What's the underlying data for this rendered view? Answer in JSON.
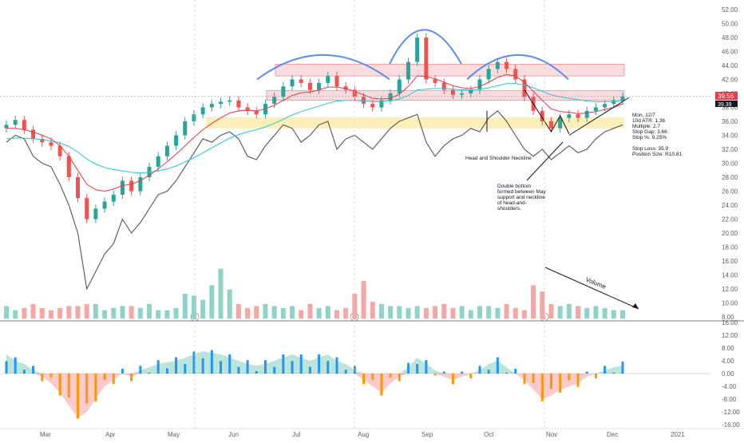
{
  "chart_data": [
    {
      "type": "candlestick",
      "title": "",
      "y_ticks": [
        "52.00",
        "50.00",
        "48.00",
        "46.00",
        "44.00",
        "42.00",
        "40.00",
        "38.00",
        "36.00",
        "34.00",
        "32.00",
        "30.00",
        "28.00",
        "26.00",
        "24.00",
        "22.00",
        "20.00",
        "18.00",
        "16.00",
        "14.00",
        "12.00",
        "10.00",
        "8.00"
      ],
      "x_labels": [
        "Mar",
        "Apr",
        "May",
        "Jun",
        "Jul",
        "Aug",
        "Sep",
        "Oct",
        "Nov",
        "Dec",
        "2021"
      ],
      "ylim": [
        8,
        52
      ],
      "last_price": "39.56",
      "prev_close_label": "39.39",
      "x": [
        "Feb 17",
        "Feb 20",
        "Feb 25",
        "Feb 28",
        "Mar 4",
        "Mar 9",
        "Mar 12",
        "Mar 17",
        "Mar 20",
        "Mar 25",
        "Mar 30",
        "Apr 2",
        "Apr 7",
        "Apr 14",
        "Apr 17",
        "Apr 22",
        "Apr 27",
        "May 1",
        "May 6",
        "May 11",
        "May 14",
        "May 19",
        "May 22",
        "May 27",
        "Jun 1",
        "Jun 4",
        "Jun 9",
        "Jun 12",
        "Jun 17",
        "Jun 22",
        "Jun 26",
        "Jul 1",
        "Jul 6",
        "Jul 9",
        "Jul 14",
        "Jul 17",
        "Jul 22",
        "Jul 27",
        "Jul 30",
        "Aug 4",
        "Aug 7",
        "Aug 12",
        "Aug 17",
        "Aug 20",
        "Aug 25",
        "Aug 28",
        "Sep 2",
        "Sep 7",
        "Sep 10",
        "Sep 15",
        "Sep 18",
        "Sep 23",
        "Sep 28",
        "Oct 1",
        "Oct 6",
        "Oct 9",
        "Oct 14",
        "Oct 19",
        "Oct 22",
        "Oct 27",
        "Oct 30",
        "Nov 4",
        "Nov 9",
        "Nov 12",
        "Nov 17",
        "Nov 20",
        "Nov 25",
        "Nov 30",
        "Dec 3",
        "Dec 7"
      ],
      "series": [
        {
          "name": "Price",
          "values": [
            35.5,
            36.2,
            34.8,
            33.5,
            33.0,
            32.5,
            31.0,
            28.0,
            25.0,
            22.0,
            23.5,
            24.5,
            25.5,
            27.5,
            26.0,
            28.0,
            29.5,
            31.0,
            32.5,
            34.0,
            36.0,
            37.0,
            38.0,
            38.5,
            38.8,
            39.0,
            38.0,
            37.5,
            37.0,
            38.5,
            39.5,
            41.0,
            42.0,
            41.5,
            40.5,
            41.5,
            42.5,
            41.0,
            40.5,
            39.5,
            38.5,
            38.0,
            39.0,
            40.0,
            42.0,
            44.5,
            48.0,
            42.0,
            41.5,
            40.5,
            39.8,
            40.0,
            40.5,
            42.0,
            43.5,
            44.5,
            43.5,
            42.0,
            39.5,
            37.5,
            36.0,
            35.0,
            36.5,
            37.0,
            36.5,
            37.5,
            38.0,
            38.5,
            39.0,
            39.56
          ]
        },
        {
          "name": "EMA fast",
          "values": [
            35.0,
            35.0,
            34.8,
            34.5,
            34.0,
            33.5,
            32.5,
            31.0,
            29.0,
            27.0,
            26.2,
            26.0,
            26.3,
            26.8,
            27.0,
            27.5,
            28.3,
            29.2,
            30.2,
            31.3,
            32.5,
            33.7,
            34.8,
            35.7,
            36.5,
            37.2,
            37.5,
            37.6,
            37.5,
            37.8,
            38.3,
            39.0,
            39.7,
            40.1,
            40.2,
            40.5,
            40.9,
            40.9,
            40.7,
            40.3,
            39.8,
            39.3,
            39.2,
            39.3,
            39.9,
            41.0,
            42.5,
            42.4,
            42.1,
            41.6,
            41.1,
            40.8,
            40.7,
            41.0,
            41.6,
            42.3,
            42.7,
            42.5,
            41.6,
            40.3,
            39.0,
            37.8,
            37.4,
            37.3,
            37.1,
            37.2,
            37.4,
            37.7,
            38.0,
            38.5
          ]
        },
        {
          "name": "EMA slow",
          "values": [
            33.5,
            33.6,
            33.6,
            33.5,
            33.4,
            33.2,
            32.9,
            32.4,
            31.6,
            30.6,
            29.9,
            29.4,
            29.1,
            28.9,
            28.7,
            28.6,
            28.7,
            28.9,
            29.2,
            29.6,
            30.2,
            30.8,
            31.5,
            32.2,
            32.9,
            33.6,
            34.1,
            34.5,
            34.8,
            35.2,
            35.7,
            36.3,
            36.9,
            37.4,
            37.8,
            38.2,
            38.6,
            38.9,
            39.0,
            39.0,
            38.9,
            38.8,
            38.8,
            38.9,
            39.2,
            39.7,
            40.5,
            40.6,
            40.7,
            40.7,
            40.6,
            40.5,
            40.5,
            40.6,
            40.8,
            41.1,
            41.4,
            41.4,
            41.2,
            40.8,
            40.3,
            39.8,
            39.5,
            39.3,
            39.1,
            38.9,
            38.8,
            38.8,
            38.8,
            38.9
          ]
        },
        {
          "name": "Relative",
          "values": [
            33.0,
            34.0,
            33.5,
            31.0,
            30.0,
            29.5,
            27.0,
            24.0,
            20.0,
            12.0,
            14.5,
            17.0,
            18.5,
            22.0,
            20.0,
            21.5,
            23.5,
            25.5,
            26.0,
            27.5,
            29.5,
            31.5,
            33.5,
            33.0,
            34.0,
            34.5,
            33.5,
            31.0,
            30.5,
            32.5,
            34.0,
            35.5,
            35.0,
            33.0,
            34.0,
            35.5,
            36.0,
            32.0,
            33.5,
            34.0,
            33.0,
            32.0,
            33.5,
            35.0,
            36.0,
            36.5,
            37.0,
            33.0,
            31.0,
            32.5,
            33.5,
            34.0,
            35.0,
            34.5,
            36.5,
            37.5,
            36.0,
            34.0,
            32.0,
            31.0,
            32.0,
            30.5,
            31.5,
            32.5,
            31.5,
            32.0,
            33.5,
            34.5,
            35.0,
            35.5
          ]
        },
        {
          "name": "Volume",
          "values": [
            3.0,
            2.0,
            2.5,
            3.5,
            2.5,
            2.0,
            2.5,
            3.0,
            3.0,
            3.5,
            3.5,
            2.0,
            2.5,
            3.0,
            3.0,
            2.5,
            3.5,
            2.0,
            2.0,
            2.5,
            6.0,
            5.5,
            4.5,
            8.0,
            12.0,
            7.0,
            3.5,
            2.5,
            3.0,
            3.5,
            3.0,
            2.5,
            3.0,
            2.0,
            3.5,
            2.5,
            3.0,
            2.0,
            2.5,
            6.0,
            9.0,
            4.0,
            3.5,
            3.0,
            3.0,
            2.5,
            3.0,
            2.5,
            3.0,
            3.5,
            2.5,
            3.0,
            2.0,
            3.0,
            3.0,
            2.5,
            3.5,
            2.5,
            2.0,
            8.0,
            6.5,
            3.5,
            3.0,
            3.5,
            3.0,
            2.5,
            3.0,
            2.5,
            2.0,
            2.0
          ]
        }
      ]
    },
    {
      "type": "histogram",
      "y_ticks": [
        "16.00",
        "12.00",
        "8.00",
        "4.00",
        "0.00",
        "-4.00",
        "-8.00",
        "-12.00",
        "-16.00"
      ],
      "ylim": [
        -16,
        16
      ],
      "series": [
        {
          "name": "Oscillator",
          "values": [
            6.0,
            4.0,
            3.0,
            1.0,
            -1.0,
            -3.0,
            -6.0,
            -10.0,
            -14.0,
            -12.0,
            -8.0,
            -4.0,
            -2.0,
            0.0,
            -1.0,
            1.0,
            2.0,
            3.0,
            3.5,
            4.0,
            5.0,
            6.0,
            7.0,
            6.5,
            6.0,
            5.0,
            4.0,
            3.0,
            2.5,
            3.0,
            4.0,
            5.0,
            6.0,
            5.0,
            4.0,
            5.0,
            6.0,
            4.0,
            3.0,
            1.0,
            -2.0,
            -4.0,
            -6.0,
            -3.0,
            -1.0,
            2.0,
            5.0,
            3.0,
            1.0,
            -1.0,
            -2.0,
            -1.0,
            0.0,
            1.0,
            3.0,
            4.0,
            2.0,
            0.0,
            -2.0,
            -5.0,
            -8.0,
            -7.0,
            -5.0,
            -4.0,
            -3.0,
            -1.0,
            0.0,
            1.0,
            2.0,
            2.5
          ]
        }
      ]
    }
  ],
  "annotations": {
    "stats": [
      "Mon, 12/7",
      "10d ATR: 1.36",
      "Multiple: 2.7",
      "Stop Gap: 3.66",
      "Stop %: 9.25%",
      "",
      "Stop Loss: 35.9",
      "Position Size: R10.81"
    ],
    "neckline_note": "Head and Shoulder Neckline",
    "double_bottom_note": [
      "Double bottom",
      "formed between May",
      "support and neckline",
      "of head-and-",
      "shoulders."
    ],
    "volume_note": "Volume",
    "earnings_marker": "E"
  },
  "colors": {
    "up": "#26a69a",
    "down": "#ef5350",
    "ema_fast": "#f23645",
    "ema_slow": "#26c6da",
    "relative": "#555555",
    "resistance_zone": "#f7c5c8",
    "support_zone": "#fbeba8",
    "arcs": "#5b8def",
    "volume_up": "#8fd3c8",
    "volume_down": "#f4a7a5",
    "osc_pos": "#2196f3",
    "osc_neg": "#ff9800"
  }
}
